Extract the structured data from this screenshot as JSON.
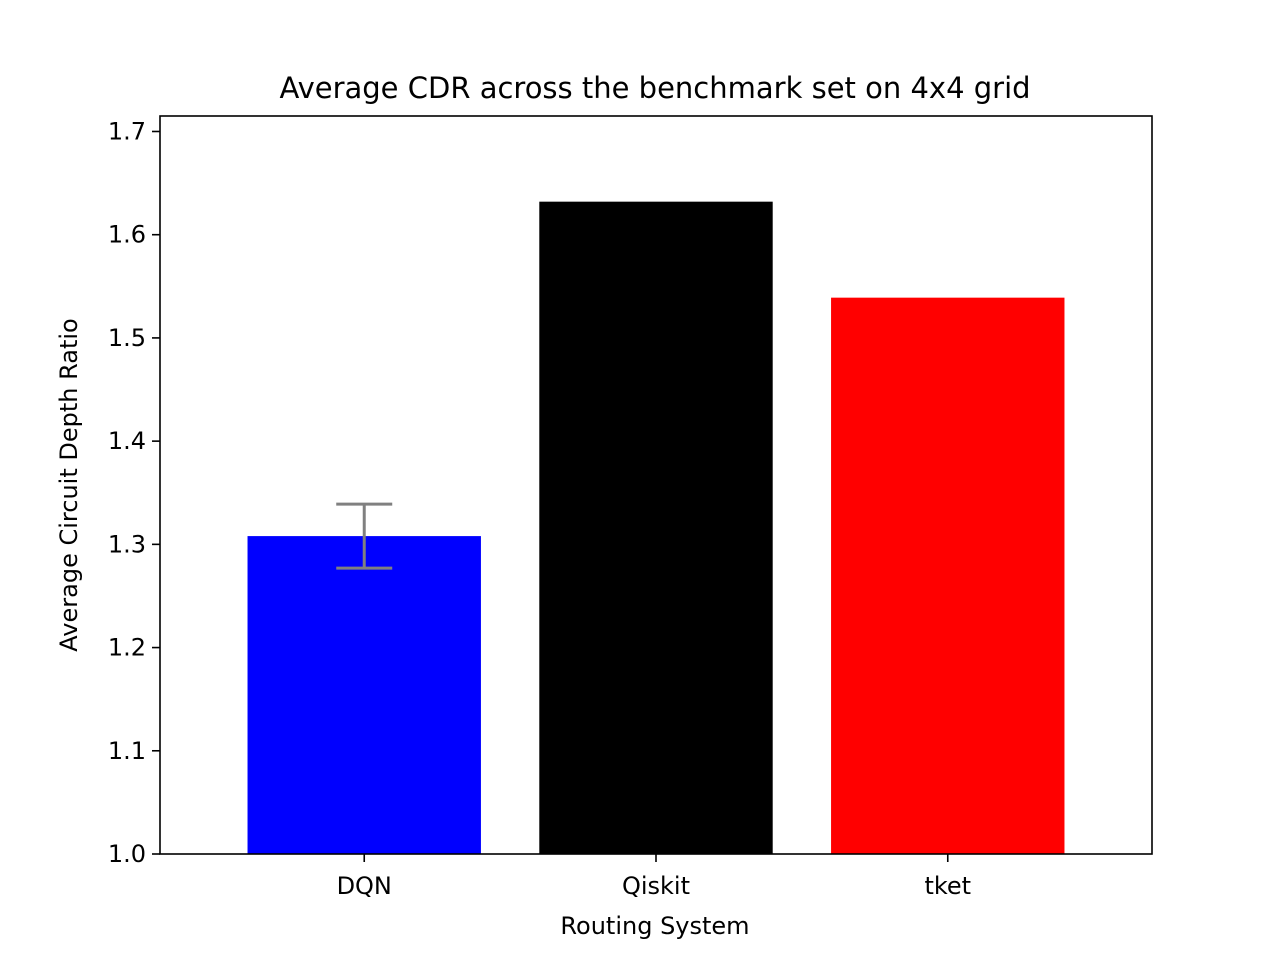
{
  "chart_data": {
    "type": "bar",
    "title": "Average CDR across the benchmark set on 4x4 grid",
    "xlabel": "Routing System",
    "ylabel": "Average Circuit Depth Ratio",
    "categories": [
      "DQN",
      "Qiskit",
      "tket"
    ],
    "values": [
      1.308,
      1.632,
      1.539
    ],
    "bar_colors": [
      "#0000ff",
      "#000000",
      "#ff0000"
    ],
    "error_bars": [
      {
        "category": "DQN",
        "lower": 1.277,
        "upper": 1.339,
        "color": "#808080"
      }
    ],
    "ylim": [
      1.0,
      1.715
    ],
    "yticks": [
      "1.0",
      "1.1",
      "1.2",
      "1.3",
      "1.4",
      "1.5",
      "1.6",
      "1.7"
    ],
    "grid": false,
    "legend": "none"
  }
}
